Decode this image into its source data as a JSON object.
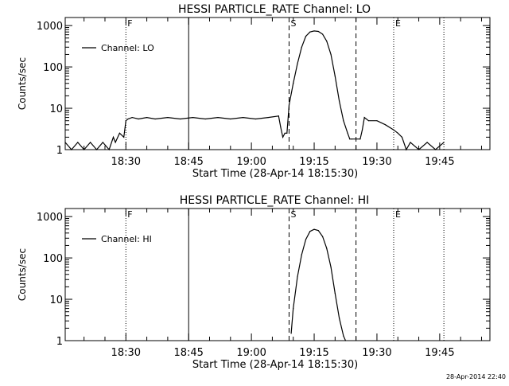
{
  "footer_timestamp": "28-Apr-2014 22:40",
  "chart_data": [
    {
      "type": "line",
      "title": "HESSI PARTICLE_RATE Channel: LO",
      "xlabel": "Start Time (28-Apr-14 18:15:30)",
      "ylabel": "Counts/sec",
      "y_scale": "log",
      "ylim": [
        1,
        1000
      ],
      "xlim": [
        "18:15:30",
        "19:57:00"
      ],
      "x_ticks": [
        "18:30",
        "18:45",
        "19:00",
        "19:15",
        "19:30",
        "19:45"
      ],
      "y_ticks": [
        "1",
        "10",
        "100",
        "1000"
      ],
      "legend": {
        "position": "top-left",
        "entries": [
          "Channel: LO"
        ]
      },
      "markers": [
        {
          "label": "F",
          "time": "18:30:00",
          "style": "dotted"
        },
        {
          "label": "",
          "time": "18:45:00",
          "style": "solid"
        },
        {
          "label": "S",
          "time": "19:09:00",
          "style": "dashed"
        },
        {
          "label": "",
          "time": "19:25:00",
          "style": "dashed"
        },
        {
          "label": "E",
          "time": "19:34:00",
          "style": "dotted"
        },
        {
          "label": "",
          "time": "19:46:00",
          "style": "dotted"
        }
      ],
      "series": [
        {
          "name": "Channel: LO",
          "x": [
            "18:15:30",
            "18:17:00",
            "18:18:30",
            "18:20:00",
            "18:21:30",
            "18:23:00",
            "18:24:30",
            "18:26:00",
            "18:27:00",
            "18:27:30",
            "18:28:30",
            "18:29:30",
            "18:30:00",
            "18:30:30",
            "18:31:30",
            "18:33:00",
            "18:35:00",
            "18:37:00",
            "18:40:00",
            "18:43:00",
            "18:46:00",
            "18:49:00",
            "18:52:00",
            "18:55:00",
            "18:58:00",
            "19:01:00",
            "19:04:00",
            "19:06:30",
            "19:07:00",
            "19:07:30",
            "19:08:00",
            "19:08:30",
            "19:09:00",
            "19:10:00",
            "19:11:00",
            "19:12:00",
            "19:13:00",
            "19:14:00",
            "19:15:00",
            "19:16:00",
            "19:17:00",
            "19:18:00",
            "19:19:00",
            "19:20:00",
            "19:21:00",
            "19:22:00",
            "19:23:00",
            "19:23:30",
            "19:24:00",
            "19:25:00",
            "19:26:00",
            "19:26:30",
            "19:27:00",
            "19:28:00",
            "19:30:00",
            "19:32:00",
            "19:34:00",
            "19:35:00",
            "19:36:00",
            "19:37:00",
            "19:38:00",
            "19:40:00",
            "19:42:00",
            "19:44:00",
            "19:46:00"
          ],
          "y": [
            1.5,
            1.0,
            1.5,
            1.0,
            1.5,
            1.0,
            1.5,
            1.0,
            2.0,
            1.5,
            2.5,
            2.0,
            5.0,
            5.5,
            6.0,
            5.5,
            6.0,
            5.5,
            6.0,
            5.5,
            6.0,
            5.5,
            6.0,
            5.5,
            6.0,
            5.5,
            6.0,
            6.5,
            3.5,
            2.0,
            2.5,
            2.5,
            12,
            40,
            120,
            300,
            550,
            700,
            740,
            720,
            620,
            420,
            200,
            60,
            15,
            5,
            2.5,
            1.8,
            1.8,
            1.8,
            1.8,
            3.0,
            6.0,
            5.0,
            5.0,
            4.0,
            3.0,
            2.5,
            2.0,
            1.0,
            1.5,
            1.0,
            1.5,
            1.0,
            1.5
          ]
        }
      ]
    },
    {
      "type": "line",
      "title": "HESSI PARTICLE_RATE Channel: HI",
      "xlabel": "Start Time (28-Apr-14 18:15:30)",
      "ylabel": "Counts/sec",
      "y_scale": "log",
      "ylim": [
        1,
        1000
      ],
      "xlim": [
        "18:15:30",
        "19:57:00"
      ],
      "x_ticks": [
        "18:30",
        "18:45",
        "19:00",
        "19:15",
        "19:30",
        "19:45"
      ],
      "y_ticks": [
        "1",
        "10",
        "100",
        "1000"
      ],
      "legend": {
        "position": "top-left",
        "entries": [
          "Channel: HI"
        ]
      },
      "markers": [
        {
          "label": "F",
          "time": "18:30:00",
          "style": "dotted"
        },
        {
          "label": "",
          "time": "18:45:00",
          "style": "solid"
        },
        {
          "label": "S",
          "time": "19:09:00",
          "style": "dashed"
        },
        {
          "label": "",
          "time": "19:25:00",
          "style": "dashed"
        },
        {
          "label": "E",
          "time": "19:34:00",
          "style": "dotted"
        },
        {
          "label": "",
          "time": "19:46:00",
          "style": "dotted"
        }
      ],
      "series": [
        {
          "name": "Channel: HI",
          "x": [
            "19:09:30",
            "19:10:00",
            "19:11:00",
            "19:12:00",
            "19:13:00",
            "19:14:00",
            "19:15:00",
            "19:16:00",
            "19:17:00",
            "19:18:00",
            "19:19:00",
            "19:20:00",
            "19:21:00",
            "19:22:00",
            "19:22:30"
          ],
          "y": [
            1.5,
            6,
            35,
            120,
            280,
            440,
            490,
            460,
            330,
            170,
            60,
            14,
            3.5,
            1.3,
            1.0
          ]
        }
      ]
    }
  ]
}
